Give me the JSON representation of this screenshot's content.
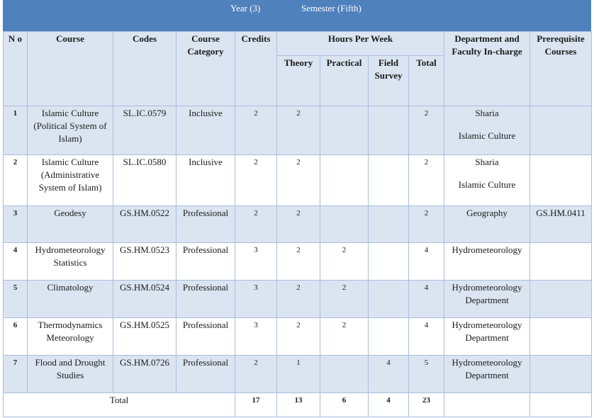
{
  "banner": {
    "year": "Year (3)",
    "semester": "Semester (Fifth)"
  },
  "headers": {
    "no": "N o",
    "course": "Course",
    "codes": "Codes",
    "category": "Course Category",
    "credits": "Credits",
    "hours": "Hours Per Week",
    "theory": "Theory",
    "practical": "Practical",
    "field": "Field Survey",
    "total": "Total",
    "dept": "Department and Faculty In-charge",
    "prereq": "Prerequisite Courses"
  },
  "rows": [
    {
      "no": "1",
      "course": "Islamic Culture (Political System of Islam)",
      "code": "SL.IC.0579",
      "category": "Inclusive",
      "credits": "2",
      "theory": "2",
      "practical": "",
      "field": "",
      "total": "2",
      "dept1": "Sharia",
      "dept2": "Islamic Culture",
      "prereq": ""
    },
    {
      "no": "2",
      "course": "Islamic Culture (Administrative System of Islam)",
      "code": "SL.IC.0580",
      "category": "Inclusive",
      "credits": "2",
      "theory": "2",
      "practical": "",
      "field": "",
      "total": "2",
      "dept1": "Sharia",
      "dept2": "Islamic Culture",
      "prereq": ""
    },
    {
      "no": "3",
      "course": "Geodesy",
      "code": "GS.HM.0522",
      "category": "Professional",
      "credits": "2",
      "theory": "2",
      "practical": "",
      "field": "",
      "total": "2",
      "dept1": "Geography",
      "dept2": "",
      "prereq": "GS.HM.0411"
    },
    {
      "no": "4",
      "course": "Hydrometeorology Statistics",
      "code": "GS.HM.0523",
      "category": "Professional",
      "credits": "3",
      "theory": "2",
      "practical": "2",
      "field": "",
      "total": "4",
      "dept1": "Hydrometeorology",
      "dept2": "",
      "prereq": ""
    },
    {
      "no": "5",
      "course": "Climatology",
      "code": "GS.HM.0524",
      "category": "Professional",
      "credits": "3",
      "theory": "2",
      "practical": "2",
      "field": "",
      "total": "4",
      "dept1": "Hydrometeorology Department",
      "dept2": "",
      "prereq": ""
    },
    {
      "no": "6",
      "course": "Thermodynamics Meteorology",
      "code": "GS.HM.0525",
      "category": "Professional",
      "credits": "3",
      "theory": "2",
      "practical": "2",
      "field": "",
      "total": "4",
      "dept1": "Hydrometeorology Department",
      "dept2": "",
      "prereq": ""
    },
    {
      "no": "7",
      "course": "Flood and Drought Studies",
      "code": "GS.HM.0726",
      "category": "Professional",
      "credits": "2",
      "theory": "1",
      "practical": "",
      "field": "4",
      "total": "5",
      "dept1": "Hydrometeorology Department",
      "dept2": "",
      "prereq": ""
    }
  ],
  "totals": {
    "label": "Total",
    "credits": "17",
    "theory": "13",
    "practical": "6",
    "field": "4",
    "total": "23"
  }
}
